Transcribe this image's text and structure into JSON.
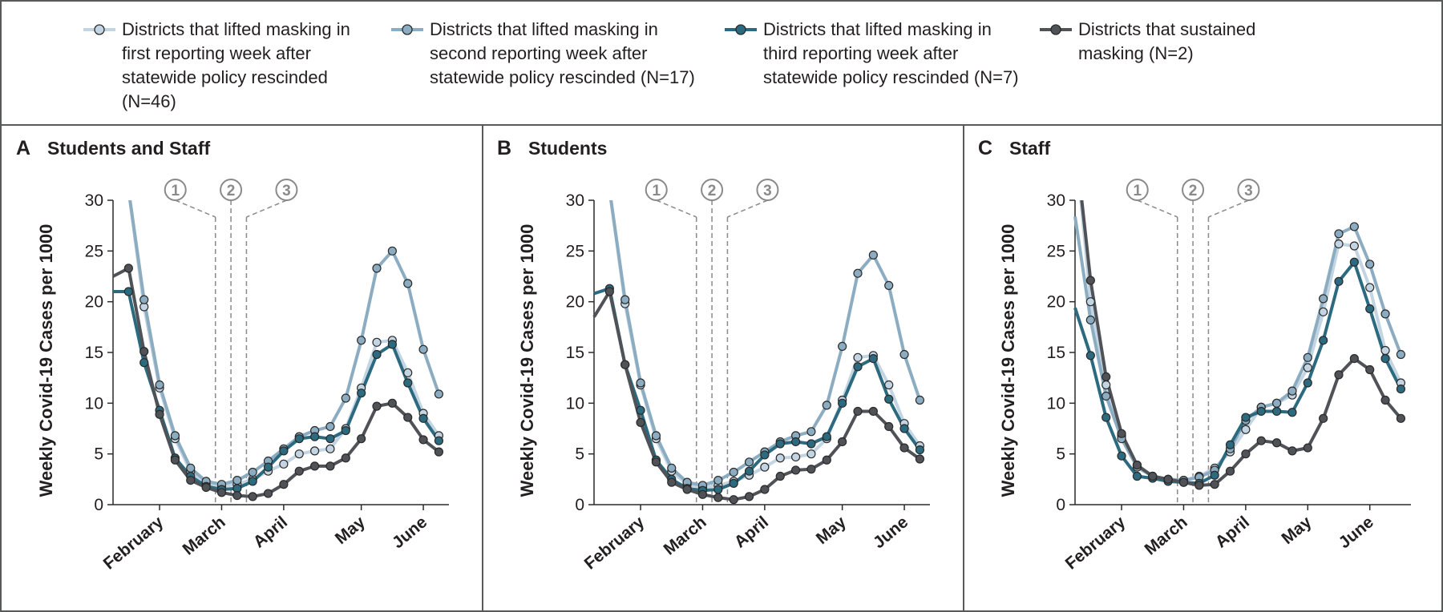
{
  "legend": [
    {
      "name": "Districts that lifted masking in first reporting week after statewide policy rescinded (N=46)",
      "color": "#c3d5e2"
    },
    {
      "name": "Districts that lifted masking in second reporting week after statewide policy rescinded (N=17)",
      "color": "#8cadc1"
    },
    {
      "name": "Districts that lifted masking in third reporting week after statewide policy rescinded (N=7)",
      "color": "#2c6a80"
    },
    {
      "name": "Districts that sustained masking (N=2)",
      "color": "#4f5257"
    }
  ],
  "chart_data": [
    {
      "type": "line",
      "panel": "A",
      "title": "Students and Staff",
      "ylabel": "Weekly Covid-19 Cases per 1000",
      "categories": [
        null,
        null,
        null,
        "February",
        null,
        null,
        null,
        "March",
        null,
        null,
        null,
        "April",
        null,
        null,
        null,
        null,
        "May",
        null,
        null,
        null,
        "June",
        null
      ],
      "ylim": [
        0,
        30
      ],
      "yticks": [
        0,
        5,
        10,
        15,
        20,
        25,
        30
      ],
      "annotations": [
        "1",
        "2",
        "3"
      ],
      "series": [
        {
          "values": [
            null,
            31,
            19.5,
            11.5,
            6.5,
            3.3,
            2.0,
            1.8,
            2.0,
            2.5,
            3.3,
            4.0,
            5.0,
            5.3,
            5.5,
            7.5,
            11.5,
            16.0,
            16.2,
            13.0,
            9.0,
            6.8
          ]
        },
        {
          "values": [
            null,
            31,
            20.2,
            11.8,
            6.8,
            3.6,
            2.3,
            2.0,
            2.4,
            3.2,
            4.3,
            5.5,
            6.7,
            7.3,
            7.7,
            10.5,
            16.2,
            23.3,
            25.0,
            21.8,
            15.3,
            10.9
          ]
        },
        {
          "values": [
            21.0,
            21.0,
            14.0,
            9.3,
            4.6,
            2.8,
            1.8,
            1.5,
            1.6,
            2.3,
            3.7,
            5.3,
            6.5,
            6.7,
            6.5,
            7.3,
            11.0,
            14.8,
            15.8,
            12.0,
            8.5,
            6.3
          ]
        },
        {
          "values": [
            22.5,
            23.3,
            15.1,
            8.9,
            4.4,
            2.4,
            1.7,
            1.2,
            0.9,
            0.8,
            1.1,
            2.0,
            3.3,
            3.8,
            3.8,
            4.6,
            6.5,
            9.7,
            10.0,
            8.6,
            6.4,
            5.2
          ]
        }
      ]
    },
    {
      "type": "line",
      "panel": "B",
      "title": "Students",
      "ylabel": "Weekly Covid-19 Cases per 1000",
      "categories": [
        null,
        null,
        null,
        "February",
        null,
        null,
        null,
        "March",
        null,
        null,
        null,
        "April",
        null,
        null,
        null,
        null,
        "May",
        null,
        null,
        null,
        "June",
        null
      ],
      "ylim": [
        0,
        30
      ],
      "yticks": [
        0,
        5,
        10,
        15,
        20,
        25,
        30
      ],
      "annotations": [
        "1",
        "2",
        "3"
      ],
      "series": [
        {
          "values": [
            null,
            31,
            19.8,
            11.8,
            6.5,
            3.3,
            2.0,
            1.7,
            1.9,
            2.3,
            2.9,
            3.7,
            4.6,
            4.7,
            5.0,
            6.5,
            10.3,
            14.5,
            14.7,
            11.8,
            8.0,
            5.8
          ]
        },
        {
          "values": [
            null,
            31,
            20.2,
            12.0,
            6.8,
            3.6,
            2.2,
            1.9,
            2.4,
            3.2,
            4.2,
            5.2,
            6.2,
            6.8,
            7.2,
            9.8,
            15.6,
            22.8,
            24.6,
            21.6,
            14.8,
            10.3
          ]
        },
        {
          "values": [
            20.8,
            21.3,
            13.8,
            9.3,
            4.4,
            2.5,
            1.6,
            1.4,
            1.5,
            2.1,
            3.3,
            4.9,
            6.0,
            6.2,
            6.0,
            6.7,
            10.0,
            13.6,
            14.4,
            10.4,
            7.5,
            5.4
          ]
        },
        {
          "values": [
            18.5,
            21.0,
            13.8,
            8.1,
            4.2,
            2.2,
            1.5,
            1.0,
            0.7,
            0.5,
            0.8,
            1.5,
            2.8,
            3.4,
            3.5,
            4.4,
            6.2,
            9.2,
            9.2,
            7.7,
            5.6,
            4.5
          ]
        }
      ]
    },
    {
      "type": "line",
      "panel": "C",
      "title": "Staff",
      "ylabel": "Weekly Covid-19 Cases per 1000",
      "categories": [
        null,
        null,
        null,
        "February",
        null,
        null,
        null,
        "March",
        null,
        null,
        null,
        "April",
        null,
        null,
        null,
        "May",
        null,
        null,
        null,
        "June",
        null,
        null
      ],
      "ylim": [
        0,
        30
      ],
      "yticks": [
        0,
        5,
        10,
        15,
        20,
        25,
        30
      ],
      "annotations": [
        "1",
        "2",
        "3"
      ],
      "series": [
        {
          "values": [
            36,
            20.0,
            11.8,
            6.8,
            3.9,
            2.8,
            2.5,
            2.4,
            2.8,
            3.6,
            5.2,
            7.4,
            9.6,
            10.0,
            10.8,
            13.5,
            19.0,
            25.7,
            25.5,
            21.4,
            15.2,
            12.0
          ]
        },
        {
          "values": [
            28.4,
            18.2,
            10.7,
            6.5,
            3.7,
            2.8,
            2.5,
            2.4,
            2.7,
            3.4,
            5.5,
            8.3,
            9.6,
            10.0,
            11.2,
            14.5,
            20.3,
            26.7,
            27.4,
            23.7,
            18.8,
            14.8
          ]
        },
        {
          "values": [
            19.4,
            14.7,
            8.6,
            4.8,
            2.8,
            2.6,
            2.3,
            2.2,
            2.1,
            2.9,
            5.9,
            8.6,
            9.2,
            9.2,
            9.1,
            12.0,
            16.2,
            22.0,
            23.9,
            19.3,
            14.4,
            11.4
          ]
        },
        {
          "values": [
            36,
            22.1,
            12.6,
            7.0,
            3.9,
            2.8,
            2.5,
            2.2,
            1.9,
            2.0,
            3.3,
            5.0,
            6.3,
            6.1,
            5.3,
            5.6,
            8.5,
            12.8,
            14.4,
            13.3,
            10.3,
            8.5
          ]
        }
      ]
    }
  ]
}
